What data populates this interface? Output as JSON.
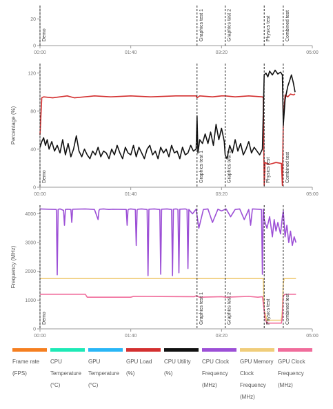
{
  "colors": {
    "frame_rate": "#f57f20",
    "cpu_temperature": "#1de9b6",
    "gpu_temperature": "#29b6f6",
    "gpu_load": "#d32f2f",
    "cpu_utility": "#111111",
    "cpu_clock": "#9c4fd6",
    "gpu_memory_clock": "#f0cd7a",
    "gpu_clock": "#f06c9b",
    "axis": "#999999",
    "tick_text": "#777777",
    "marker": "#222222"
  },
  "chart_data": [
    {
      "type": "line",
      "title": "",
      "ylabel": "",
      "ylim": [
        0,
        30
      ],
      "yticks": [
        "0",
        "20"
      ],
      "xlim": [
        0,
        300
      ],
      "xticks": [
        "00:00",
        "01:40",
        "03:20",
        "05:00"
      ],
      "markers": [
        {
          "t": 0,
          "label": "Demo"
        },
        {
          "t": 173,
          "label": "Graphics test 1"
        },
        {
          "t": 204,
          "label": "Graphics test 2"
        },
        {
          "t": 247,
          "label": "Physics test"
        },
        {
          "t": 268,
          "label": "Combined test"
        }
      ],
      "series": []
    },
    {
      "type": "line",
      "title": "",
      "ylabel": "Percentage (%)",
      "ylim": [
        0,
        130
      ],
      "yticks": [
        "0",
        "40",
        "80",
        "120"
      ],
      "xlim": [
        0,
        300
      ],
      "xticks": [
        "00:00",
        "01:40",
        "03:20",
        "05:00"
      ],
      "markers": [
        {
          "t": 0,
          "label": "Demo"
        },
        {
          "t": 173,
          "label": "Graphics test 1"
        },
        {
          "t": 204,
          "label": "Graphics test 2"
        },
        {
          "t": 247,
          "label": "Physics test"
        },
        {
          "t": 268,
          "label": "Combined test"
        }
      ],
      "series": [
        {
          "name": "GPU Load (%)",
          "color_key": "gpu_load",
          "x": [
            0,
            2,
            4,
            14,
            30,
            38,
            60,
            78,
            100,
            122,
            150,
            172,
            173,
            176,
            190,
            200,
            204,
            215,
            230,
            245,
            246,
            247,
            248,
            250,
            252,
            256,
            260,
            266,
            267,
            268,
            270,
            273,
            276,
            279,
            281
          ],
          "y": [
            55,
            94,
            95,
            94,
            96,
            94,
            96,
            95,
            96,
            95,
            96,
            96,
            94,
            96,
            95,
            96,
            96,
            95,
            96,
            95,
            94,
            2,
            26,
            25,
            24,
            25,
            26,
            25,
            2,
            70,
            97,
            95,
            98,
            97,
            98
          ]
        },
        {
          "name": "CPU Utility (%)",
          "color_key": "cpu_utility",
          "x": [
            0,
            2,
            4,
            6,
            8,
            10,
            13,
            16,
            19,
            22,
            25,
            28,
            31,
            34,
            37,
            40,
            43,
            46,
            49,
            52,
            55,
            58,
            61,
            64,
            67,
            70,
            73,
            76,
            79,
            82,
            85,
            88,
            91,
            94,
            97,
            100,
            103,
            106,
            109,
            112,
            115,
            118,
            121,
            124,
            127,
            130,
            133,
            136,
            139,
            142,
            145,
            148,
            151,
            154,
            157,
            160,
            163,
            166,
            169,
            172,
            173,
            174,
            176,
            179,
            182,
            185,
            188,
            191,
            194,
            197,
            200,
            203,
            204,
            206,
            209,
            212,
            215,
            218,
            221,
            224,
            227,
            230,
            233,
            236,
            239,
            242,
            245,
            247,
            249,
            251,
            253,
            256,
            259,
            262,
            265,
            267,
            268,
            270,
            273,
            275,
            277,
            279,
            281
          ],
          "y": [
            42,
            48,
            52,
            44,
            50,
            40,
            48,
            38,
            44,
            36,
            50,
            34,
            46,
            32,
            40,
            54,
            38,
            32,
            40,
            34,
            30,
            38,
            34,
            42,
            32,
            38,
            36,
            30,
            40,
            34,
            44,
            36,
            30,
            42,
            36,
            34,
            44,
            32,
            42,
            36,
            30,
            40,
            44,
            34,
            38,
            30,
            42,
            36,
            40,
            32,
            44,
            36,
            38,
            30,
            42,
            34,
            36,
            44,
            38,
            40,
            75,
            36,
            50,
            46,
            56,
            46,
            58,
            44,
            66,
            50,
            62,
            48,
            34,
            30,
            44,
            36,
            50,
            38,
            46,
            34,
            40,
            48,
            36,
            42,
            38,
            34,
            40,
            118,
            120,
            116,
            122,
            118,
            123,
            119,
            121,
            118,
            65,
            92,
            106,
            112,
            118,
            110,
            100
          ]
        }
      ]
    },
    {
      "type": "line",
      "title": "",
      "ylabel": "Frequency (MHz)",
      "ylim": [
        0,
        4300
      ],
      "yticks": [
        "0",
        "1000",
        "2000",
        "3000",
        "4000"
      ],
      "xlim": [
        0,
        300
      ],
      "xticks": [
        "00:00",
        "01:40",
        "03:20",
        "05:00"
      ],
      "markers": [
        {
          "t": 0,
          "label": "Demo"
        },
        {
          "t": 173,
          "label": "Graphics test 1"
        },
        {
          "t": 204,
          "label": "Graphics test 2"
        },
        {
          "t": 247,
          "label": "Physics test"
        },
        {
          "t": 268,
          "label": "Combined test"
        }
      ],
      "series": [
        {
          "name": "CPU Clock Frequency (MHz)",
          "color_key": "cpu_clock",
          "x": [
            0,
            18,
            19,
            20,
            22,
            26,
            27,
            28,
            30,
            34,
            35,
            36,
            50,
            60,
            64,
            65,
            66,
            70,
            76,
            80,
            95,
            96,
            97,
            98,
            100,
            105,
            106,
            107,
            108,
            112,
            118,
            119,
            120,
            126,
            132,
            133,
            134,
            140,
            145,
            146,
            147,
            150,
            152,
            153,
            154,
            160,
            162,
            163,
            164,
            168,
            172,
            175,
            180,
            185,
            190,
            196,
            200,
            205,
            210,
            215,
            220,
            225,
            230,
            232,
            234,
            240,
            244,
            245,
            246,
            247,
            250,
            253,
            256,
            258,
            260,
            262,
            265,
            267,
            268,
            270,
            272,
            274,
            276,
            278,
            280,
            282
          ],
          "y": [
            4170,
            4150,
            1880,
            4150,
            4170,
            4120,
            3600,
            4150,
            4160,
            4150,
            3700,
            4160,
            4170,
            4150,
            3800,
            4120,
            4160,
            4170,
            4150,
            4160,
            4150,
            3600,
            4140,
            4160,
            4170,
            4150,
            2900,
            4140,
            4160,
            4170,
            4150,
            1850,
            4160,
            4170,
            4150,
            1900,
            4160,
            4170,
            4150,
            1850,
            4160,
            4170,
            4150,
            1950,
            4160,
            4170,
            4150,
            2100,
            4150,
            4000,
            4160,
            3500,
            4150,
            4170,
            3700,
            4160,
            4100,
            4170,
            3900,
            4150,
            4170,
            3800,
            4150,
            3600,
            4170,
            4160,
            4150,
            1900,
            4170,
            3800,
            3500,
            3900,
            3200,
            3800,
            3400,
            3700,
            3300,
            3900,
            4100,
            3200,
            3600,
            3000,
            3400,
            2900,
            3200,
            3000
          ]
        },
        {
          "name": "GPU Memory Clock Frequency (MHz)",
          "color_key": "gpu_memory_clock",
          "x": [
            0,
            172,
            174,
            246,
            247,
            250,
            266,
            267,
            268,
            269,
            282
          ],
          "y": [
            1750,
            1750,
            1750,
            1750,
            650,
            300,
            300,
            650,
            1600,
            1750,
            1750
          ]
        },
        {
          "name": "GPU Clock Frequency (MHz)",
          "color_key": "gpu_clock",
          "x": [
            0,
            50,
            52,
            100,
            103,
            170,
            172,
            176,
            200,
            205,
            230,
            240,
            245,
            246,
            248,
            250,
            266,
            267,
            268,
            270,
            282
          ],
          "y": [
            1200,
            1200,
            1100,
            1100,
            1130,
            1120,
            1150,
            1100,
            1120,
            1100,
            1130,
            1100,
            1120,
            900,
            350,
            200,
            200,
            400,
            1150,
            1200,
            1200
          ]
        }
      ]
    }
  ],
  "legend": [
    {
      "label": "Frame rate (FPS)",
      "color_key": "frame_rate"
    },
    {
      "label": "CPU Temperature (°C)",
      "color_key": "cpu_temperature"
    },
    {
      "label": "GPU Temperature (°C)",
      "color_key": "gpu_temperature"
    },
    {
      "label": "GPU Load (%)",
      "color_key": "gpu_load"
    },
    {
      "label": "CPU Utility (%)",
      "color_key": "cpu_utility"
    },
    {
      "label": "CPU Clock Frequency (MHz)",
      "color_key": "cpu_clock"
    },
    {
      "label": "GPU Memory Clock Frequency (MHz)",
      "color_key": "gpu_memory_clock"
    },
    {
      "label": "GPU Clock Frequency (MHz)",
      "color_key": "gpu_clock"
    }
  ]
}
